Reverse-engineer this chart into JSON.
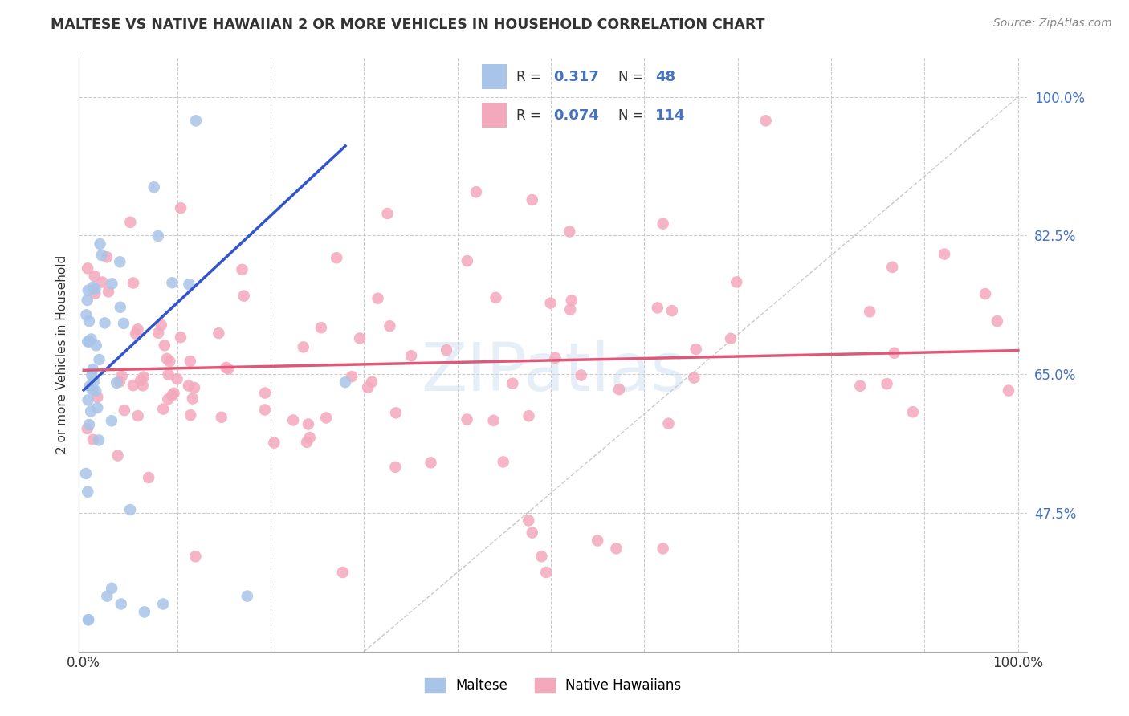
{
  "title": "MALTESE VS NATIVE HAWAIIAN 2 OR MORE VEHICLES IN HOUSEHOLD CORRELATION CHART",
  "source": "Source: ZipAtlas.com",
  "ylabel": "2 or more Vehicles in Household",
  "legend_maltese_r": "0.317",
  "legend_maltese_n": "48",
  "legend_native_r": "0.074",
  "legend_native_n": "114",
  "maltese_color": "#a8c4e8",
  "native_color": "#f4a8bc",
  "maltese_line_color": "#3355cc",
  "native_line_color": "#e05878",
  "diagonal_color": "#bbbbbb",
  "watermark": "ZIPatlas",
  "grid_color": "#cccccc",
  "y_ticks_right": [
    0.475,
    0.65,
    0.825,
    1.0
  ],
  "y_tick_labels_right": [
    "47.5%",
    "65.0%",
    "82.5%",
    "100.0%"
  ]
}
